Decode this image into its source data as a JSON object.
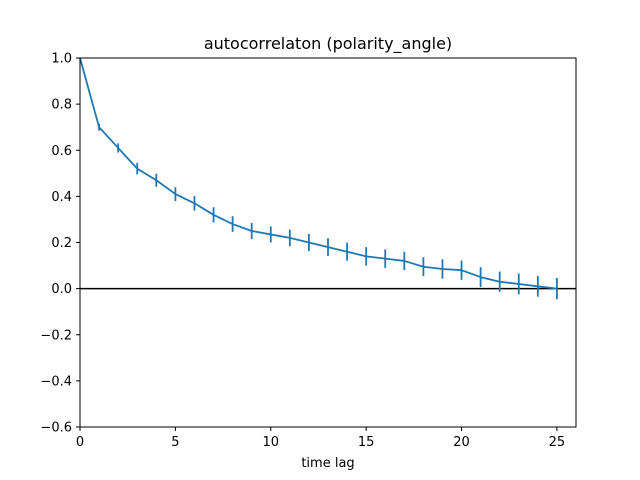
{
  "chart_data": {
    "type": "line",
    "title": "autocorrelaton (polarity_angle)",
    "xlabel": "time lag",
    "ylabel": "",
    "xlim": [
      0,
      26
    ],
    "ylim": [
      -0.6,
      1.0
    ],
    "x_ticks": [
      0,
      5,
      10,
      15,
      20,
      25
    ],
    "y_ticks": [
      -0.6,
      -0.4,
      -0.2,
      0.0,
      0.2,
      0.4,
      0.6,
      0.8,
      1.0
    ],
    "x_tick_labels": [
      "0",
      "5",
      "10",
      "15",
      "20",
      "25"
    ],
    "y_tick_labels": [
      "−0.6",
      "−0.4",
      "−0.2",
      "0.0",
      "0.2",
      "0.4",
      "0.6",
      "0.8",
      "1.0"
    ],
    "grid": false,
    "reference_line_y": 0.0,
    "series": [
      {
        "color": "#1f77b4",
        "x": [
          0,
          1,
          2,
          3,
          4,
          5,
          6,
          7,
          8,
          9,
          10,
          11,
          12,
          13,
          14,
          15,
          16,
          17,
          18,
          19,
          20,
          21,
          22,
          23,
          24,
          25
        ],
        "y": [
          1.0,
          0.7,
          0.61,
          0.52,
          0.47,
          0.41,
          0.37,
          0.32,
          0.28,
          0.25,
          0.235,
          0.22,
          0.2,
          0.18,
          0.16,
          0.14,
          0.13,
          0.12,
          0.095,
          0.085,
          0.08,
          0.05,
          0.03,
          0.02,
          0.01,
          0.0
        ],
        "error": [
          0.0,
          0.015,
          0.02,
          0.025,
          0.028,
          0.03,
          0.032,
          0.033,
          0.034,
          0.035,
          0.035,
          0.036,
          0.037,
          0.038,
          0.039,
          0.04,
          0.04,
          0.04,
          0.041,
          0.042,
          0.042,
          0.043,
          0.044,
          0.045,
          0.045,
          0.046
        ]
      }
    ]
  }
}
